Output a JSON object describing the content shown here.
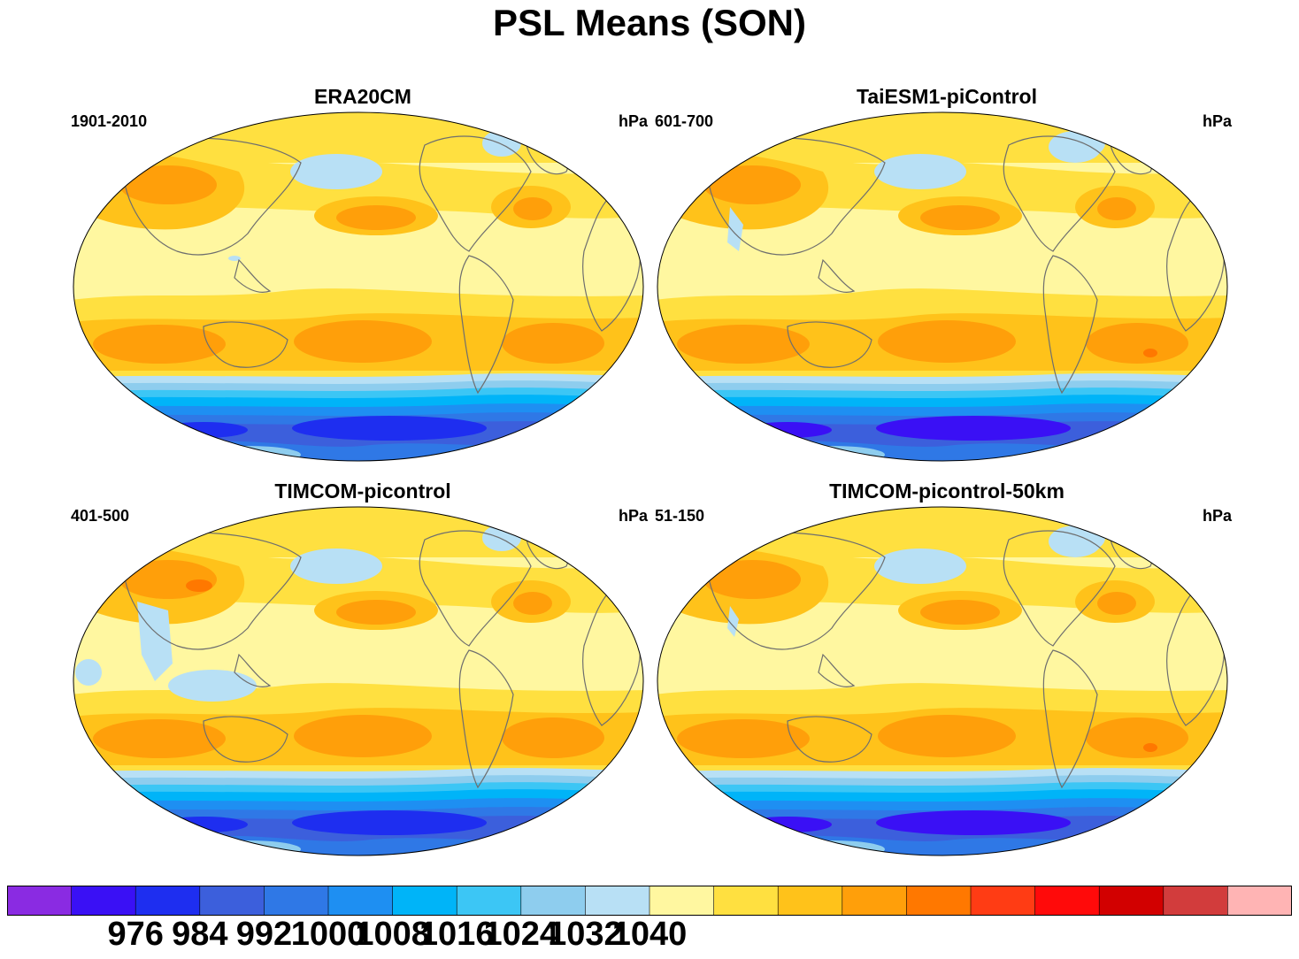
{
  "title": "PSL Means (SON)",
  "panels": [
    {
      "title": "ERA20CM",
      "period": "1901-2010",
      "units": "hPa",
      "variant": 0
    },
    {
      "title": "TaiESM1-piControl",
      "period": "601-700",
      "units": "hPa",
      "variant": 1
    },
    {
      "title": "TIMCOM-picontrol",
      "period": "401-500",
      "units": "hPa",
      "variant": 2
    },
    {
      "title": "TIMCOM-picontrol-50km",
      "period": "51-150",
      "units": "hPa",
      "variant": 3
    }
  ],
  "colorbar": {
    "colors": [
      "#8a2be2",
      "#3a10f5",
      "#1e2ef0",
      "#3c5fdc",
      "#2f78e6",
      "#1e8ff2",
      "#00b4f8",
      "#3cc6f5",
      "#8ecdee",
      "#b8e0f5",
      "#fff7a0",
      "#ffe040",
      "#ffc21a",
      "#ff9f0a",
      "#ff7800",
      "#ff3c14",
      "#ff0a0a",
      "#d20000",
      "#d23c3c",
      "#ffb4b4"
    ],
    "labels": [
      "976",
      "984",
      "992",
      "1000",
      "1008",
      "1016",
      "1024",
      "1032",
      "1040"
    ]
  },
  "colors": {
    "land_outline": "#6e6e6e",
    "background": "#ffffff"
  }
}
